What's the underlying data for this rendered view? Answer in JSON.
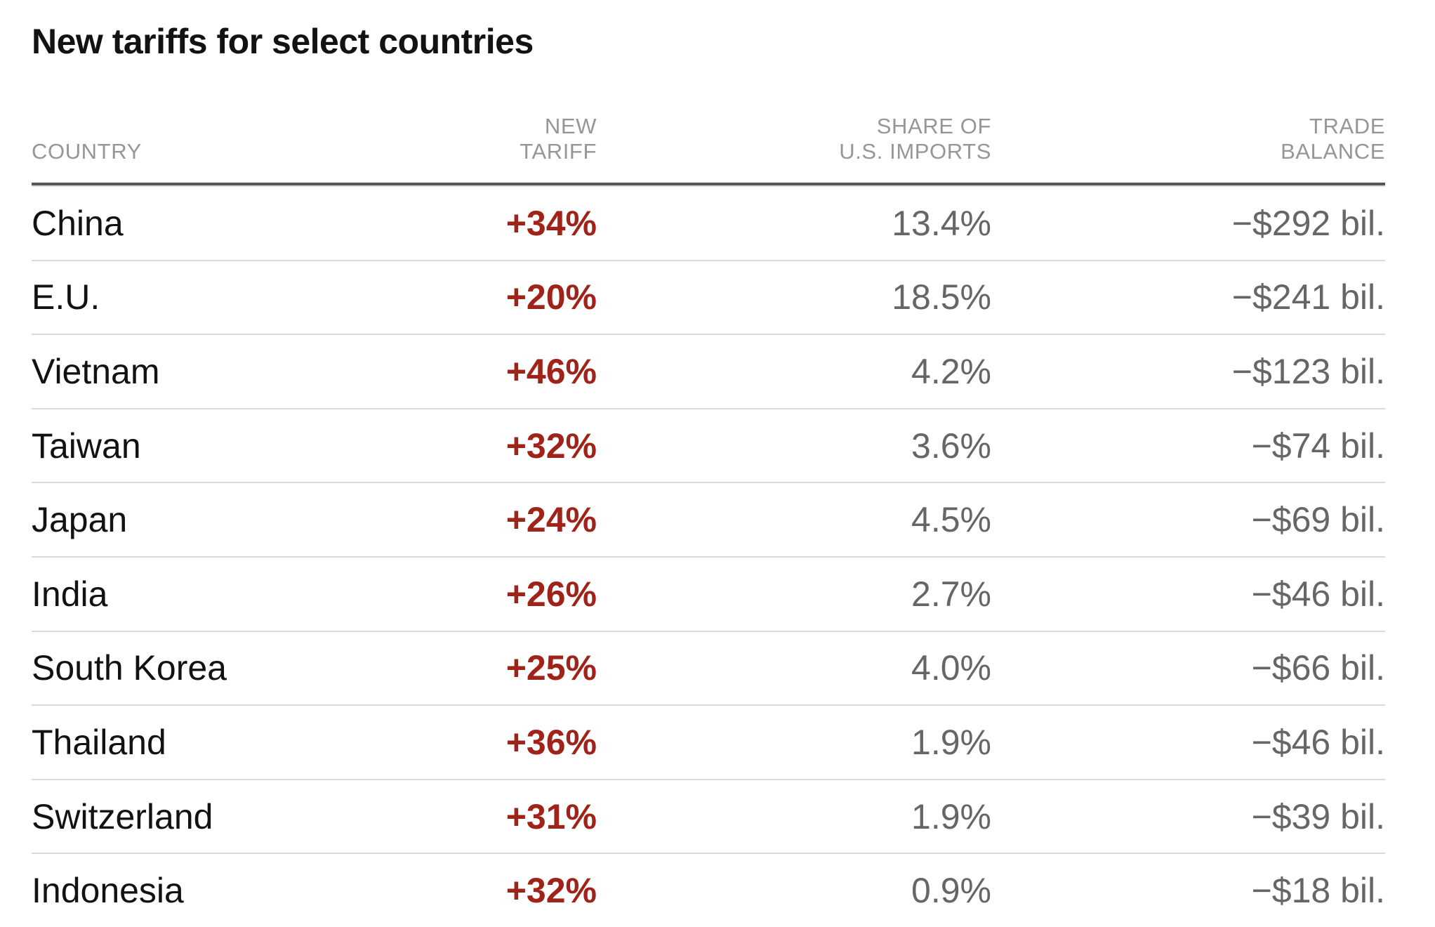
{
  "title": "New tariffs for select countries",
  "colors": {
    "tariff_red": "#a0231a",
    "value_gray": "#666666",
    "header_gray": "#969696",
    "text_black": "#121212",
    "header_rule_dark": "#555555",
    "row_rule_light": "#dadada",
    "background": "#ffffff"
  },
  "chart_data": {
    "type": "table",
    "title": "New tariffs for select countries",
    "columns": [
      {
        "key": "country",
        "label": "COUNTRY",
        "lines": [
          "COUNTRY"
        ],
        "align": "left"
      },
      {
        "key": "new_tariff",
        "label": "NEW TARIFF",
        "lines": [
          "NEW",
          "TARIFF"
        ],
        "align": "right"
      },
      {
        "key": "share_of_us_imports",
        "label": "SHARE OF U.S. IMPORTS",
        "lines": [
          "SHARE OF",
          "U.S. IMPORTS"
        ],
        "align": "right"
      },
      {
        "key": "trade_balance",
        "label": "TRADE BALANCE",
        "lines": [
          "TRADE",
          "BALANCE"
        ],
        "align": "right"
      }
    ],
    "rows": [
      {
        "country": "China",
        "new_tariff": "+34%",
        "share_of_us_imports": "13.4%",
        "trade_balance": "−$292 bil."
      },
      {
        "country": "E.U.",
        "new_tariff": "+20%",
        "share_of_us_imports": "18.5%",
        "trade_balance": "−$241 bil."
      },
      {
        "country": "Vietnam",
        "new_tariff": "+46%",
        "share_of_us_imports": "4.2%",
        "trade_balance": "−$123 bil."
      },
      {
        "country": "Taiwan",
        "new_tariff": "+32%",
        "share_of_us_imports": "3.6%",
        "trade_balance": "−$74 bil."
      },
      {
        "country": "Japan",
        "new_tariff": "+24%",
        "share_of_us_imports": "4.5%",
        "trade_balance": "−$69 bil."
      },
      {
        "country": "India",
        "new_tariff": "+26%",
        "share_of_us_imports": "2.7%",
        "trade_balance": "−$46 bil."
      },
      {
        "country": "South Korea",
        "new_tariff": "+25%",
        "share_of_us_imports": "4.0%",
        "trade_balance": "−$66 bil."
      },
      {
        "country": "Thailand",
        "new_tariff": "+36%",
        "share_of_us_imports": "1.9%",
        "trade_balance": "−$46 bil."
      },
      {
        "country": "Switzerland",
        "new_tariff": "+31%",
        "share_of_us_imports": "1.9%",
        "trade_balance": "−$39 bil."
      },
      {
        "country": "Indonesia",
        "new_tariff": "+32%",
        "share_of_us_imports": "0.9%",
        "trade_balance": "−$18 bil."
      }
    ],
    "tariff_values_numeric": [
      34,
      20,
      46,
      32,
      24,
      26,
      25,
      36,
      31,
      32
    ],
    "share_values_numeric": [
      13.4,
      18.5,
      4.2,
      3.6,
      4.5,
      2.7,
      4.0,
      1.9,
      1.9,
      0.9
    ],
    "trade_balance_values_numeric_bil": [
      -292,
      -241,
      -123,
      -74,
      -69,
      -46,
      -66,
      -46,
      -39,
      -18
    ]
  }
}
